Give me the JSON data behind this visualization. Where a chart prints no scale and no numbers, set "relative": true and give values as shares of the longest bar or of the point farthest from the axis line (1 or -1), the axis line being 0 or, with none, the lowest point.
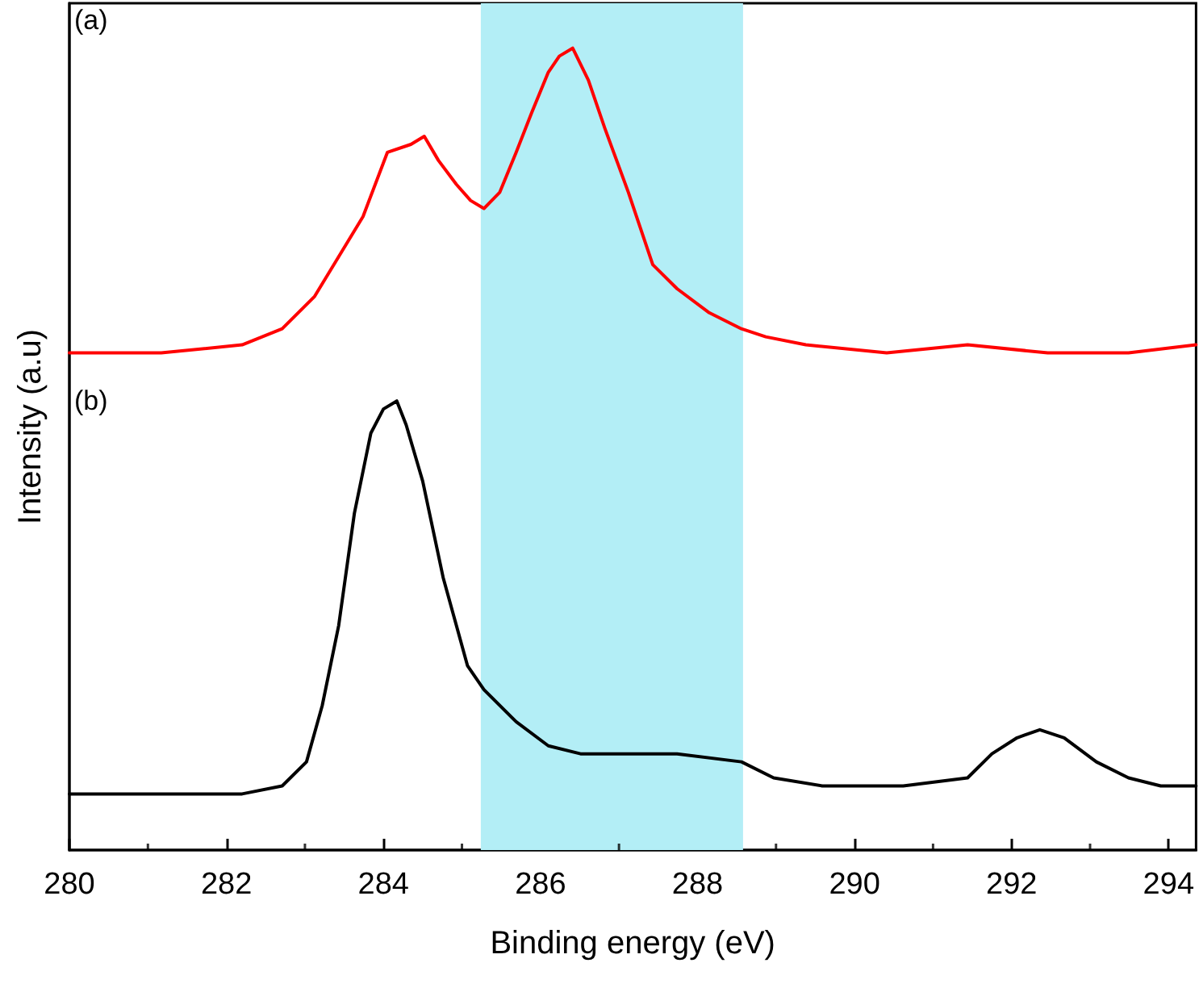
{
  "chart_data": {
    "type": "line",
    "relative": true,
    "xlabel": "Binding energy (eV)",
    "ylabel": "Intensity (a.u)",
    "xlim": [
      280,
      294.35
    ],
    "xticks": [
      280,
      282,
      284,
      286,
      288,
      290,
      292,
      294
    ],
    "grid": false,
    "marker": "none",
    "line_style": "solid",
    "series": [
      {
        "color": "#ff0000",
        "x": [
          280,
          281.17,
          282.2,
          282.71,
          283.12,
          283.43,
          283.74,
          284.05,
          284.35,
          284.52,
          284.7,
          284.93,
          285.11,
          285.28,
          285.48,
          285.69,
          285.89,
          286.1,
          286.24,
          286.41,
          286.61,
          286.82,
          287.12,
          287.43,
          287.74,
          288.15,
          288.56,
          288.87,
          289.38,
          290.41,
          291.44,
          292.46,
          293.49,
          294.35
        ],
        "values": [
          0.62,
          0.62,
          0.63,
          0.65,
          0.69,
          0.74,
          0.79,
          0.87,
          0.88,
          0.89,
          0.86,
          0.83,
          0.81,
          0.8,
          0.82,
          0.87,
          0.92,
          0.97,
          0.99,
          1,
          0.96,
          0.9,
          0.82,
          0.73,
          0.7,
          0.67,
          0.65,
          0.64,
          0.63,
          0.62,
          0.63,
          0.62,
          0.62,
          0.63
        ]
      },
      {
        "color": "#000000",
        "x": [
          280,
          281.17,
          282.2,
          282.71,
          283.02,
          283.22,
          283.43,
          283.63,
          283.84,
          284.0,
          284.17,
          284.29,
          284.5,
          284.76,
          285.07,
          285.28,
          285.69,
          286.1,
          286.51,
          287.33,
          287.74,
          288.56,
          288.97,
          289.59,
          290.62,
          291.44,
          291.75,
          292.07,
          292.36,
          292.67,
          293.08,
          293.49,
          293.9,
          294.35
        ],
        "values": [
          0.07,
          0.07,
          0.07,
          0.08,
          0.11,
          0.18,
          0.28,
          0.42,
          0.52,
          0.55,
          0.56,
          0.53,
          0.46,
          0.34,
          0.23,
          0.2,
          0.16,
          0.13,
          0.12,
          0.12,
          0.12,
          0.11,
          0.09,
          0.08,
          0.08,
          0.09,
          0.12,
          0.14,
          0.15,
          0.14,
          0.11,
          0.09,
          0.08,
          0.08
        ]
      }
    ],
    "bands": [
      {
        "axis": "x",
        "from": 285.24,
        "to": 288.58,
        "color": "#b3eef6"
      }
    ],
    "annotations": [
      "(a)",
      "(b)"
    ]
  }
}
